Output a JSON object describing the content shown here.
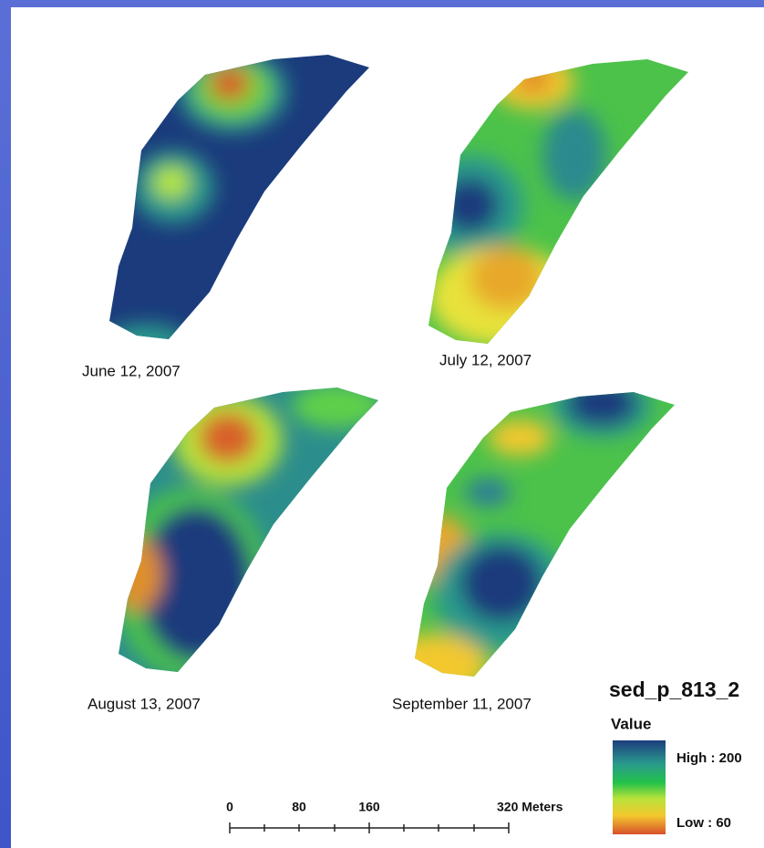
{
  "maps": [
    {
      "label": "June 12, 2007"
    },
    {
      "label": "July 12, 2007"
    },
    {
      "label": "August 13, 2007"
    },
    {
      "label": "September 11, 2007"
    }
  ],
  "legend": {
    "title": "sed_p_813_2",
    "subtitle": "Value",
    "high": "High : 200",
    "low": "Low : 60"
  },
  "scale_bar": {
    "labels": [
      "0",
      "80",
      "160",
      "320 Meters"
    ]
  }
}
